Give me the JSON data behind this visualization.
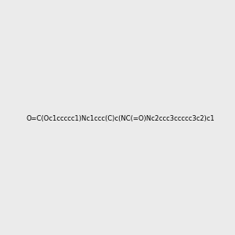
{
  "smiles": "O=C(Oc1ccccc1)Nc1ccc(C)c(NC(=O)Nc2ccc3ccccc3c2)c1",
  "bg_color": "#ebebeb",
  "bond_color": "#2e7d7d",
  "atom_colors": {
    "O": "#ff0000",
    "N": "#0000cc"
  },
  "img_size": [
    300,
    300
  ]
}
